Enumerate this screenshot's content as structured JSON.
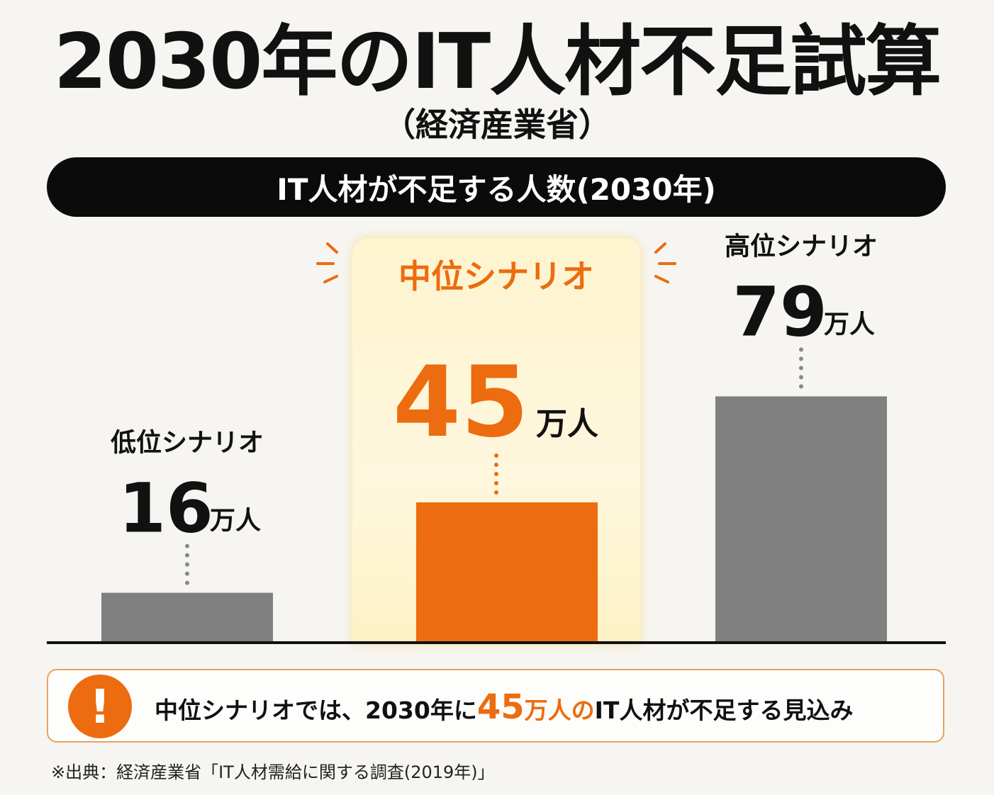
{
  "title": "2030年のIT人材不足試算",
  "subtitle": "（経済産業省）",
  "header": "IT人材が不足する人数(2030年)",
  "colors": {
    "accent": "#ec6c0f",
    "bar_gray": "#808080",
    "highlight_bg": "#fdf4cf"
  },
  "chart_data": {
    "type": "bar",
    "categories": [
      "低位シナリオ",
      "中位シナリオ",
      "高位シナリオ"
    ],
    "values": [
      16,
      45,
      79
    ],
    "unit": "万人",
    "highlighted": "中位シナリオ",
    "ylim": [
      0,
      100
    ]
  },
  "note": {
    "icon": "exclamation-icon",
    "part1": "中位シナリオでは、2030年に",
    "hl_number": "45",
    "hl_unit": "万人",
    "hl_particle": "の",
    "part2": "IT人材が不足する見込み"
  },
  "source": "※出典：経済産業省「IT人材需給に関する調査(2019年)」"
}
